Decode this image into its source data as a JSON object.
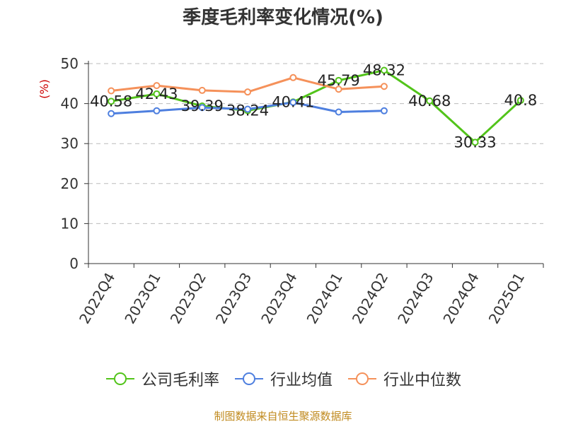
{
  "chart_data": {
    "type": "line",
    "title": "季度毛利率变化情况(%)",
    "ylabel": "(%)",
    "categories": [
      "2022Q4",
      "2023Q1",
      "2023Q2",
      "2023Q3",
      "2023Q4",
      "2024Q1",
      "2024Q2",
      "2024Q3",
      "2024Q4",
      "2025Q1"
    ],
    "ylim": [
      0,
      50
    ],
    "yticks": [
      0,
      10,
      20,
      30,
      40,
      50
    ],
    "grid": true,
    "legend_position": "bottom",
    "series": [
      {
        "name": "公司毛利率",
        "color": "#52c41a",
        "values": [
          40.58,
          42.43,
          39.39,
          38.24,
          40.41,
          45.79,
          48.32,
          40.68,
          30.33,
          40.8
        ],
        "labels": [
          "40.58",
          "42.43",
          "39.39",
          "38.24",
          "40.41",
          "45.79",
          "48.32",
          "40.68",
          "30.33",
          "40.8"
        ]
      },
      {
        "name": "行业均值",
        "color": "#4e7fdf",
        "values": [
          37.5,
          38.2,
          39.0,
          38.6,
          40.3,
          37.9,
          38.2,
          null,
          null,
          null
        ]
      },
      {
        "name": "行业中位数",
        "color": "#f5915a",
        "values": [
          43.2,
          44.5,
          43.3,
          42.9,
          46.5,
          43.6,
          44.3,
          null,
          null,
          null
        ]
      }
    ]
  },
  "source_note": "制图数据来自恒生聚源数据库"
}
